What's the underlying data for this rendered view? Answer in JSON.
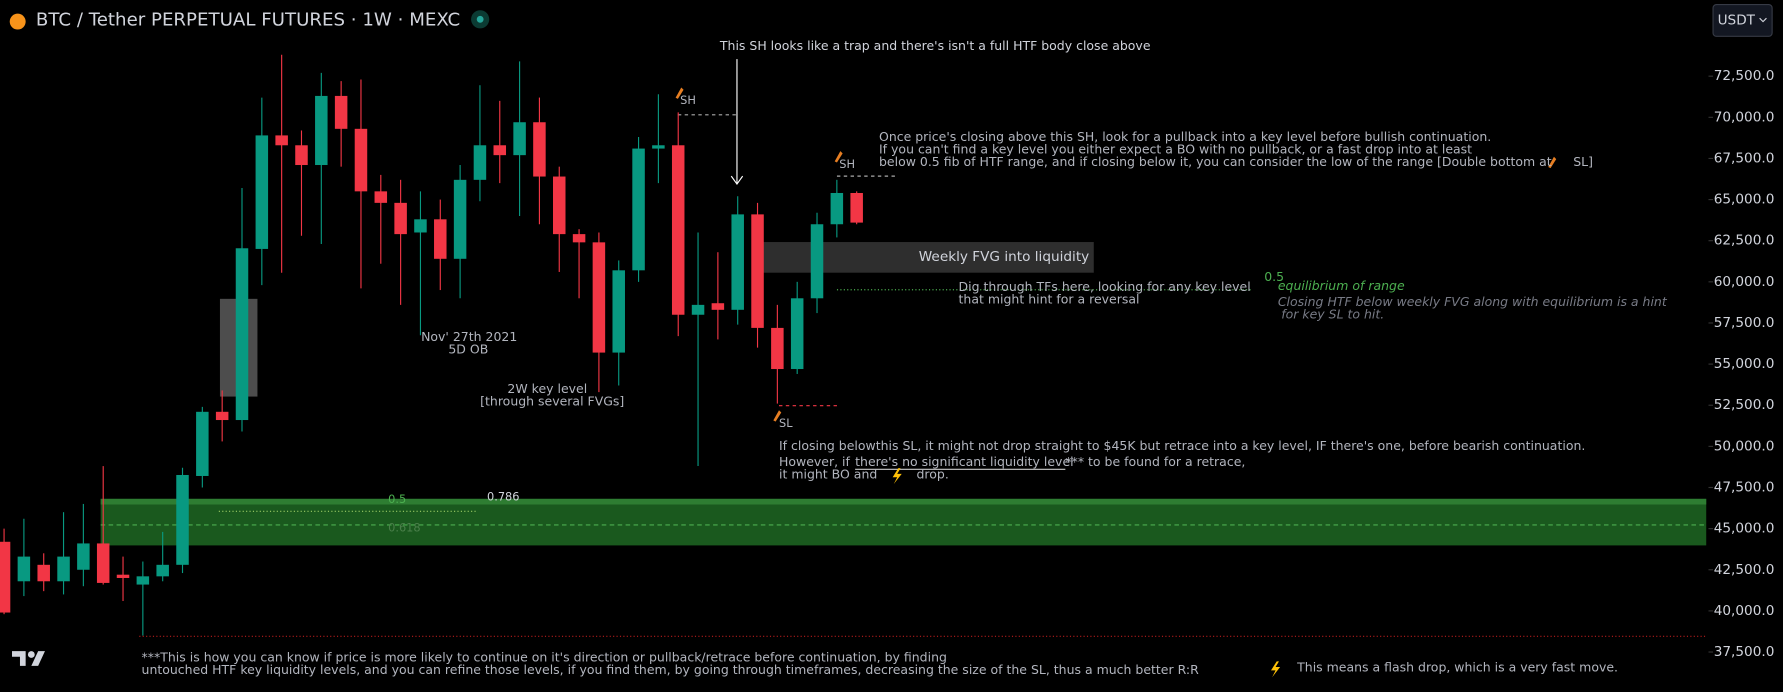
{
  "chart_data": {
    "type": "candlestick",
    "title": "BTC / Tether PERPETUAL FUTURES · 1W · MEXC",
    "currency": "USDT",
    "categories": [
      null,
      null,
      null,
      null,
      null,
      null,
      null,
      null,
      null,
      null,
      null,
      null,
      null,
      null,
      null,
      null,
      null,
      null,
      null,
      null,
      null,
      null,
      null,
      null,
      null,
      null,
      null,
      null,
      null,
      null,
      null,
      null,
      null,
      null,
      null,
      null,
      null,
      null,
      null,
      null,
      null,
      null,
      null,
      null
    ],
    "open": [
      44200,
      41800,
      42800,
      41800,
      42500,
      44100,
      42200,
      41600,
      42100,
      42800,
      48200,
      52100,
      51600,
      62000,
      68900,
      68300,
      67100,
      71300,
      69300,
      65500,
      64800,
      63000,
      63800,
      61400,
      66200,
      68300,
      67700,
      69700,
      66400,
      62900,
      62400,
      55700,
      60700,
      68100,
      68300,
      58000,
      58700,
      58300,
      64100,
      57200,
      54700,
      59000,
      63500,
      65400
    ],
    "high": [
      45000,
      45600,
      43500,
      46000,
      46500,
      48800,
      43300,
      43000,
      44800,
      48700,
      52400,
      53400,
      65700,
      71200,
      73800,
      69200,
      72700,
      72200,
      72300,
      66500,
      66200,
      65500,
      65000,
      67100,
      71950,
      71000,
      73400,
      71200,
      67000,
      63200,
      63000,
      61300,
      68800,
      71400,
      70300,
      63000,
      61800,
      65200,
      64800,
      58600,
      60000,
      64200,
      66200,
      65500
    ],
    "low": [
      39800,
      40900,
      41200,
      41000,
      41500,
      41600,
      40600,
      38500,
      41800,
      42300,
      47500,
      50300,
      50900,
      59800,
      60550,
      62800,
      62300,
      67000,
      59600,
      61100,
      58600,
      56750,
      59500,
      59000,
      64900,
      66000,
      64000,
      63500,
      60600,
      59000,
      53300,
      53700,
      60000,
      66000,
      56700,
      48810,
      56500,
      57400,
      56000,
      52600,
      54400,
      58100,
      62700,
      63500
    ],
    "close": [
      39900,
      43300,
      41800,
      43300,
      44100,
      41700,
      42000,
      42100,
      42800,
      48260,
      52100,
      51600,
      62040,
      68900,
      68300,
      67100,
      71300,
      69300,
      65500,
      64800,
      62900,
      63800,
      61400,
      66200,
      68300,
      67700,
      69700,
      66400,
      62900,
      62400,
      55700,
      60700,
      68100,
      68300,
      58000,
      58600,
      58300,
      64100,
      57200,
      54700,
      59000,
      63500,
      65400,
      63600
    ],
    "up_color": "#089981",
    "down_color": "#f23645",
    "ylim": [
      35070,
      77130
    ],
    "yticks": [
      {
        "value": 37500,
        "label": "37,500.0"
      },
      {
        "value": 40000,
        "label": "40,000.0"
      },
      {
        "value": 42500,
        "label": "42,500.0"
      },
      {
        "value": 45000,
        "label": "45,000.0"
      },
      {
        "value": 47500,
        "label": "47,500.0"
      },
      {
        "value": 50000,
        "label": "50,000.0"
      },
      {
        "value": 52500,
        "label": "52,500.0"
      },
      {
        "value": 55000,
        "label": "55,000.0"
      },
      {
        "value": 57500,
        "label": "57,500.0"
      },
      {
        "value": 60000,
        "label": "60,000.0"
      },
      {
        "value": 62500,
        "label": "62,500.0"
      },
      {
        "value": 65000,
        "label": "65,000.0"
      },
      {
        "value": 67500,
        "label": "67,500.0"
      },
      {
        "value": 70000,
        "label": "70,000.0"
      },
      {
        "value": 72500,
        "label": "72,500.0"
      }
    ],
    "grid": false,
    "annotations": [
      "This SH looks like a trap and there's isn't a full HTF body close above",
      "SH",
      "SH",
      "Once price's closing above this SH, look for a pullback into a key level before bullish continuation.",
      "If you can't find a key level you either expect a BO with no pullback, or a fast drop into at least",
      "below 0.5 fib of HTF range, and if closing below it, you can consider the low of the range [Double bottom at",
      "SL]",
      "Weekly FVG into liquidity",
      "Dig through TFs here, looking for any key level",
      "that might hint for a reversal",
      "0.5",
      "equilibrium of range",
      "Closing HTF below weekly FVG along with equilibrium is a hint",
      "for key SL to hit.",
      "Nov' 27th 2021",
      "5D OB",
      "2W key level",
      "[through several FVGs]",
      "SL",
      "If closing belowthis SL, it might not drop straight to $45K but retrace into a key level, IF there's one, before bearish continuation.",
      "However, if",
      "there's no significant liquidity level",
      "*** to be found for a retrace,",
      "it might BO and",
      "drop.",
      "0.5",
      "0.786",
      "0.618",
      "***This is how you can know if price is more likely to continue on it's direction or pullback/retrace before continuation, by finding",
      "untouched HTF key liquidity levels, and you can refine those levels, if you find them, by going through timeframes, decreasing the size of the SL, thus a much better R:R",
      "This means a flash drop, which is a very fast move."
    ]
  }
}
